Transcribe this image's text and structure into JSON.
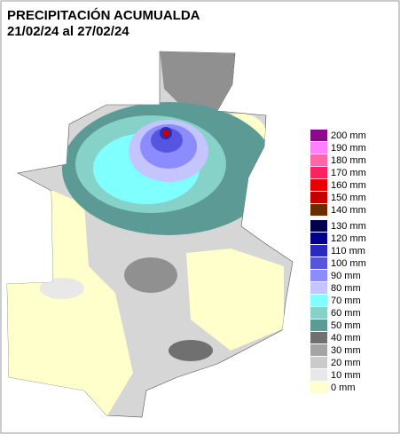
{
  "header": {
    "title": "PRECIPITACIÓN ACUMUALDA",
    "period": "21/02/24 al 27/02/24"
  },
  "legend": {
    "items": [
      {
        "label": "200 mm",
        "color": "#8b0a8b"
      },
      {
        "label": "190 mm",
        "color": "#ff80ff"
      },
      {
        "label": "180 mm",
        "color": "#ff66a8"
      },
      {
        "label": "170 mm",
        "color": "#ff2060"
      },
      {
        "label": "160 mm",
        "color": "#e60000"
      },
      {
        "label": "150 mm",
        "color": "#c40000"
      },
      {
        "label": "140 mm",
        "color": "#6b2c00"
      },
      {
        "label": "130 mm",
        "color": "#000050"
      },
      {
        "label": "120 mm",
        "color": "#00008c"
      },
      {
        "label": "110 mm",
        "color": "#2a2ac0"
      },
      {
        "label": "100 mm",
        "color": "#5555e0"
      },
      {
        "label": "90 mm",
        "color": "#8c8cff"
      },
      {
        "label": "80 mm",
        "color": "#c4c4ff"
      },
      {
        "label": "70 mm",
        "color": "#80ffff"
      },
      {
        "label": "60 mm",
        "color": "#86d2c8"
      },
      {
        "label": "50 mm",
        "color": "#5c9a96"
      },
      {
        "label": "40 mm",
        "color": "#707070"
      },
      {
        "label": "30 mm",
        "color": "#a4a4a4"
      },
      {
        "label": "20 mm",
        "color": "#cacaca"
      },
      {
        "label": "10 mm",
        "color": "#e8e8e8"
      },
      {
        "label": "0 mm",
        "color": "#ffffcc"
      }
    ]
  }
}
